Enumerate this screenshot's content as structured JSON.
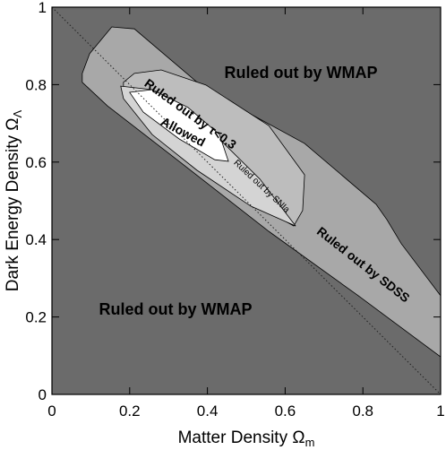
{
  "chart_data": {
    "type": "contour",
    "x_label": "Matter Density Ω",
    "x_label_subscript": "m",
    "y_label": "Dark Energy Density Ω",
    "y_label_subscript": "Λ",
    "xlim": [
      0,
      1
    ],
    "ylim": [
      0,
      1
    ],
    "xticks": [
      0,
      0.2,
      0.4,
      0.6,
      0.8,
      1
    ],
    "yticks": [
      0,
      0.2,
      0.4,
      0.6,
      0.8,
      1
    ],
    "background_color": "#6b6b6b",
    "annotations": [
      "Ruled out by WMAP",
      "Ruled out by WMAP"
    ],
    "reference_line": {
      "x": [
        0,
        1
      ],
      "y": [
        1,
        0
      ]
    },
    "series": [
      {
        "name": "Ruled out by SDSS",
        "color": "#a8a8a8",
        "x": [
          0.078,
          0.097,
          0.154,
          0.212,
          0.396,
          0.65,
          0.834,
          0.862,
          0.899,
          1,
          1,
          0.788,
          0.558,
          0.327,
          0.143,
          0.078
        ],
        "y": [
          0.829,
          0.88,
          0.949,
          0.944,
          0.787,
          0.648,
          0.491,
          0.451,
          0.389,
          0.255,
          0.097,
          0.255,
          0.421,
          0.602,
          0.745,
          0.806
        ]
      },
      {
        "name": "Ruled out by τ<0.3",
        "color": "#bdbdbd",
        "x": [
          0.184,
          0.212,
          0.281,
          0.396,
          0.558,
          0.65,
          0.645,
          0.622,
          0.512,
          0.373,
          0.258,
          0.184
        ],
        "y": [
          0.806,
          0.829,
          0.838,
          0.799,
          0.694,
          0.567,
          0.475,
          0.435,
          0.498,
          0.602,
          0.694,
          0.775
        ]
      },
      {
        "name": "Ruled out by SNIa",
        "color": "#d4d4d4",
        "x": [
          0.177,
          0.258,
          0.396,
          0.535,
          0.627,
          0.512,
          0.373,
          0.258,
          0.184
        ],
        "y": [
          0.796,
          0.787,
          0.694,
          0.556,
          0.435,
          0.486,
          0.579,
          0.671,
          0.764
        ]
      },
      {
        "name": "Allowed",
        "color": "#ffffff",
        "x": [
          0.2,
          0.258,
          0.35,
          0.431,
          0.454,
          0.419,
          0.327,
          0.235
        ],
        "y": [
          0.78,
          0.787,
          0.741,
          0.671,
          0.602,
          0.606,
          0.66,
          0.729
        ]
      }
    ]
  }
}
